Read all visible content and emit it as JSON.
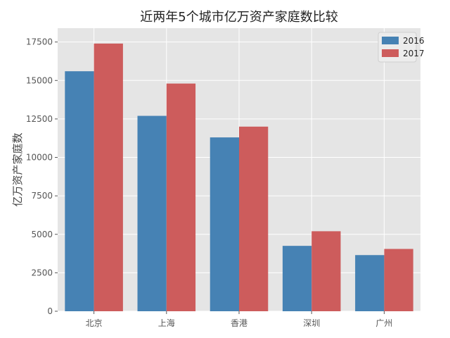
{
  "chart_data": {
    "type": "bar",
    "title": "近两年5个城市亿万资产家庭数比较",
    "xlabel": "",
    "ylabel": "亿万资产家庭数",
    "categories": [
      "北京",
      "上海",
      "香港",
      "深圳",
      "广州"
    ],
    "series": [
      {
        "name": "2016",
        "color": "#4682b4",
        "values": [
          15600,
          12700,
          11300,
          4250,
          3650
        ]
      },
      {
        "name": "2017",
        "color": "#cd5c5c",
        "values": [
          17400,
          14800,
          12000,
          5200,
          4050
        ]
      }
    ],
    "ylim": [
      0,
      18400
    ],
    "yticks": [
      0,
      2500,
      5000,
      7500,
      10000,
      12500,
      15000,
      17500
    ],
    "grid": true,
    "legend": "top-right",
    "background_color": "#e5e5e5",
    "grid_color": "#ffffff"
  }
}
